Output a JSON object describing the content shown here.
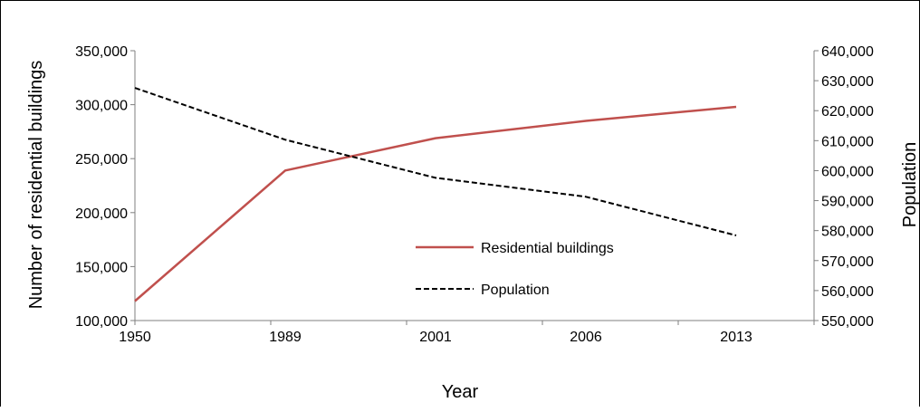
{
  "chart_data": {
    "type": "line",
    "categories": [
      "1950",
      "1989",
      "2001",
      "2006",
      "2013"
    ],
    "xlabel": "Year",
    "ylabel": "Number of residential buildings",
    "y2label": "Population",
    "ylim": [
      100000,
      350000
    ],
    "y2lim": [
      550000,
      640000
    ],
    "yticks": [
      "100,000",
      "150,000",
      "200,000",
      "250,000",
      "300,000",
      "350,000"
    ],
    "y2ticks": [
      "550,000",
      "560,000",
      "570,000",
      "580,000",
      "590,000",
      "600,000",
      "610,000",
      "620,000",
      "630,000",
      "640,000"
    ],
    "series": [
      {
        "name": "Residential buildings",
        "axis": "left",
        "color": "#c0504d",
        "style": "solid",
        "values": [
          118000,
          239000,
          269000,
          285000,
          298000
        ]
      },
      {
        "name": "Population",
        "axis": "right",
        "color": "#000000",
        "style": "dashed",
        "values": [
          627600,
          610300,
          597600,
          591300,
          578400
        ]
      }
    ],
    "legend_position": "center-right inside plot",
    "grid": false
  }
}
